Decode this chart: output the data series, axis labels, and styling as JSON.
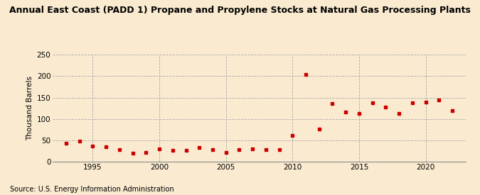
{
  "title": "Annual East Coast (PADD 1) Propane and Propylene Stocks at Natural Gas Processing Plants",
  "ylabel": "Thousand Barrels",
  "source": "Source: U.S. Energy Information Administration",
  "background_color": "#faebd0",
  "years": [
    1993,
    1994,
    1995,
    1996,
    1997,
    1998,
    1999,
    2000,
    2001,
    2002,
    2003,
    2004,
    2005,
    2006,
    2007,
    2008,
    2009,
    2010,
    2011,
    2012,
    2013,
    2014,
    2015,
    2016,
    2017,
    2018,
    2019,
    2020,
    2021,
    2022
  ],
  "values": [
    44,
    49,
    37,
    35,
    28,
    20,
    22,
    30,
    27,
    27,
    34,
    28,
    22,
    28,
    30,
    28,
    28,
    62,
    204,
    76,
    136,
    116,
    112,
    137,
    127,
    112,
    138,
    139,
    145,
    120
  ],
  "marker_color": "#cc0000",
  "marker": "s",
  "marker_size": 3.5,
  "xlim": [
    1992,
    2023
  ],
  "ylim": [
    0,
    250
  ],
  "yticks": [
    0,
    50,
    100,
    150,
    200,
    250
  ],
  "xticks": [
    1995,
    2000,
    2005,
    2010,
    2015,
    2020
  ],
  "grid_color": "#aaaaaa",
  "grid_linestyle": "--",
  "title_fontsize": 9,
  "ylabel_fontsize": 7.5,
  "tick_fontsize": 7.5,
  "source_fontsize": 7
}
